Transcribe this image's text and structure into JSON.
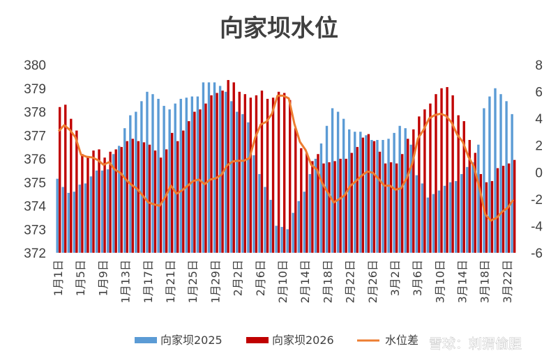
{
  "chart_data": {
    "type": "bar",
    "title": "向家坝水位",
    "y_left": {
      "min": 372,
      "max": 380,
      "step": 1,
      "ticks": [
        "372",
        "373",
        "374",
        "375",
        "376",
        "377",
        "378",
        "379",
        "380"
      ]
    },
    "y_right": {
      "min": -6,
      "max": 8,
      "step": 2,
      "ticks": [
        "-6",
        "-4",
        "-2",
        "0",
        "2",
        "4",
        "6",
        "8"
      ]
    },
    "x_tick_labels": [
      "1月1日",
      "1月5日",
      "1月9日",
      "1月13日",
      "1月17日",
      "1月21日",
      "1月25日",
      "1月29日",
      "2月2日",
      "2月6日",
      "2月10日",
      "2月14日",
      "2月18日",
      "2月22日",
      "2月26日",
      "3月2日",
      "3月6日",
      "3月10日",
      "3月14日",
      "3月18日",
      "3月22日"
    ],
    "grid": false,
    "legend_position": "bottom",
    "series": [
      {
        "name": "向家坝2025",
        "type": "bar",
        "axis": "left",
        "color": "#5B9BD5",
        "values": [
          375.15,
          374.8,
          374.55,
          374.6,
          374.9,
          374.95,
          375.25,
          375.5,
          375.5,
          375.55,
          376.2,
          376.55,
          377.3,
          377.85,
          378.0,
          378.45,
          378.85,
          378.75,
          378.55,
          378.25,
          378.1,
          378.35,
          378.55,
          378.6,
          378.65,
          378.65,
          379.25,
          379.25,
          379.25,
          379.1,
          378.85,
          378.45,
          378.0,
          377.9,
          377.55,
          376.15,
          375.35,
          374.8,
          374.25,
          373.15,
          373.1,
          373.0,
          373.7,
          374.2,
          374.6,
          375.35,
          376.0,
          376.65,
          377.4,
          378.15,
          378.0,
          377.7,
          377.25,
          377.15,
          377.15,
          377.0,
          376.8,
          376.8,
          376.8,
          376.85,
          377.1,
          377.4,
          377.3,
          376.6,
          375.3,
          374.95,
          374.35,
          374.5,
          374.65,
          374.85,
          375.0,
          375.05,
          375.35,
          375.65,
          375.85,
          376.6,
          378.15,
          378.65,
          379.0,
          378.75,
          378.45,
          377.9
        ]
      },
      {
        "name": "向家坝2026",
        "type": "bar",
        "axis": "left",
        "color": "#C00000",
        "values": [
          378.2,
          378.3,
          377.7,
          377.2,
          376.2,
          376.1,
          376.35,
          376.4,
          376.05,
          376.3,
          376.4,
          376.5,
          376.75,
          376.85,
          376.75,
          376.7,
          376.6,
          376.35,
          376.05,
          376.4,
          377.1,
          376.75,
          377.2,
          377.6,
          378.0,
          378.1,
          378.35,
          378.7,
          378.8,
          378.9,
          379.35,
          379.25,
          378.85,
          378.75,
          378.6,
          378.7,
          378.9,
          378.55,
          378.6,
          378.85,
          378.8,
          378.5,
          377.3,
          376.45,
          376.25,
          375.9,
          376.2,
          375.8,
          375.85,
          375.9,
          376.0,
          376.0,
          376.25,
          376.5,
          376.9,
          377.05,
          376.75,
          376.3,
          375.8,
          375.85,
          375.8,
          376.2,
          376.85,
          377.25,
          377.8,
          378.1,
          378.35,
          378.75,
          379.0,
          379.05,
          378.7,
          377.85,
          377.6,
          376.8,
          376.25,
          375.35,
          375.0,
          375.05,
          375.6,
          375.7,
          375.8,
          375.95
        ]
      },
      {
        "name": "水位差",
        "type": "line",
        "axis": "right",
        "color": "#ED7D31",
        "values": [
          3.05,
          3.5,
          3.15,
          2.6,
          1.3,
          1.15,
          1.1,
          0.9,
          0.55,
          0.75,
          0.2,
          -0.05,
          -0.55,
          -0.95,
          -1.25,
          -1.75,
          -2.25,
          -2.4,
          -2.5,
          -1.85,
          -1.0,
          -1.6,
          -1.35,
          -1.0,
          -0.65,
          -0.55,
          -0.9,
          -0.55,
          -0.45,
          -0.2,
          0.5,
          0.8,
          0.85,
          0.85,
          1.05,
          2.55,
          3.55,
          3.75,
          4.35,
          5.7,
          5.7,
          5.5,
          3.6,
          2.25,
          1.65,
          0.55,
          0.2,
          -0.85,
          -1.55,
          -2.25,
          -2.0,
          -1.7,
          -1.0,
          -0.65,
          -0.25,
          0.05,
          -0.05,
          -0.5,
          -1.0,
          -1.0,
          -1.3,
          -1.2,
          -0.45,
          0.65,
          2.5,
          3.15,
          4.0,
          4.25,
          4.35,
          4.2,
          3.7,
          2.8,
          2.25,
          1.15,
          0.4,
          -1.25,
          -3.15,
          -3.6,
          -3.4,
          -2.95,
          -2.65,
          -2.05
        ]
      }
    ]
  },
  "watermark": "雪球：刺猬偷腥"
}
